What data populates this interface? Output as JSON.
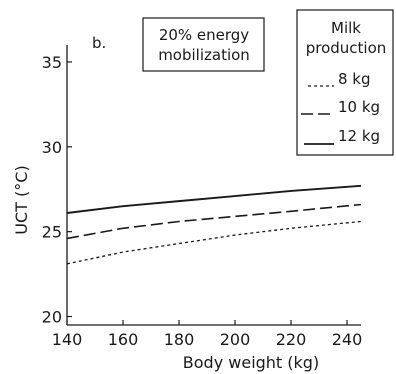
{
  "chart_data": {
    "type": "line",
    "panel_label": "b.",
    "title_box": [
      "20% energy",
      "mobilization"
    ],
    "xlabel": "Body weight (kg)",
    "ylabel": "UCT (°C)",
    "xlim": [
      140,
      245
    ],
    "ylim": [
      19.5,
      36
    ],
    "xticks": [
      140,
      160,
      180,
      200,
      220,
      240
    ],
    "yticks": [
      20,
      25,
      30,
      35
    ],
    "grid": false,
    "legend": {
      "title": [
        "Milk",
        "production"
      ],
      "placement": "top-right",
      "entries": [
        "8 kg",
        "10 kg",
        "12 kg"
      ]
    },
    "series": [
      {
        "name": "8 kg",
        "line_style": "dotted-dash",
        "x": [
          140,
          160,
          180,
          200,
          220,
          245
        ],
        "values": [
          23.1,
          23.8,
          24.3,
          24.8,
          25.2,
          25.6
        ]
      },
      {
        "name": "10 kg",
        "line_style": "long-dash",
        "x": [
          140,
          160,
          180,
          200,
          220,
          245
        ],
        "values": [
          24.6,
          25.2,
          25.6,
          25.9,
          26.2,
          26.6
        ]
      },
      {
        "name": "12 kg",
        "line_style": "solid",
        "x": [
          140,
          160,
          180,
          200,
          220,
          245
        ],
        "values": [
          26.1,
          26.5,
          26.8,
          27.1,
          27.4,
          27.7
        ]
      }
    ]
  }
}
